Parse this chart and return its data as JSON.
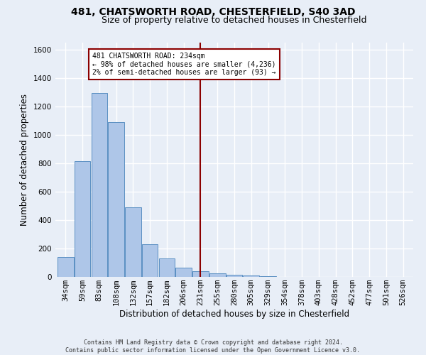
{
  "title1": "481, CHATSWORTH ROAD, CHESTERFIELD, S40 3AD",
  "title2": "Size of property relative to detached houses in Chesterfield",
  "xlabel": "Distribution of detached houses by size in Chesterfield",
  "ylabel": "Number of detached properties",
  "footnote": "Contains HM Land Registry data © Crown copyright and database right 2024.\nContains public sector information licensed under the Open Government Licence v3.0.",
  "bin_labels": [
    "34sqm",
    "59sqm",
    "83sqm",
    "108sqm",
    "132sqm",
    "157sqm",
    "182sqm",
    "206sqm",
    "231sqm",
    "255sqm",
    "280sqm",
    "305sqm",
    "329sqm",
    "354sqm",
    "378sqm",
    "403sqm",
    "428sqm",
    "452sqm",
    "477sqm",
    "501sqm",
    "526sqm"
  ],
  "bar_values": [
    140,
    815,
    1295,
    1090,
    490,
    230,
    130,
    65,
    38,
    25,
    15,
    12,
    5,
    2,
    0,
    0,
    0,
    0,
    0,
    0,
    0
  ],
  "bar_color": "#aec6e8",
  "bar_edge_color": "#5a8fc2",
  "vline_x": 8,
  "vline_color": "#8b0000",
  "annotation_text": "481 CHATSWORTH ROAD: 234sqm\n← 98% of detached houses are smaller (4,236)\n2% of semi-detached houses are larger (93) →",
  "annotation_box_color": "#ffffff",
  "annotation_box_edge": "#8b0000",
  "ylim": [
    0,
    1650
  ],
  "bg_color": "#e8eef7",
  "grid_color": "#ffffff",
  "title1_fontsize": 10,
  "title2_fontsize": 9,
  "tick_fontsize": 7.5,
  "label_fontsize": 8.5,
  "footnote_fontsize": 6
}
